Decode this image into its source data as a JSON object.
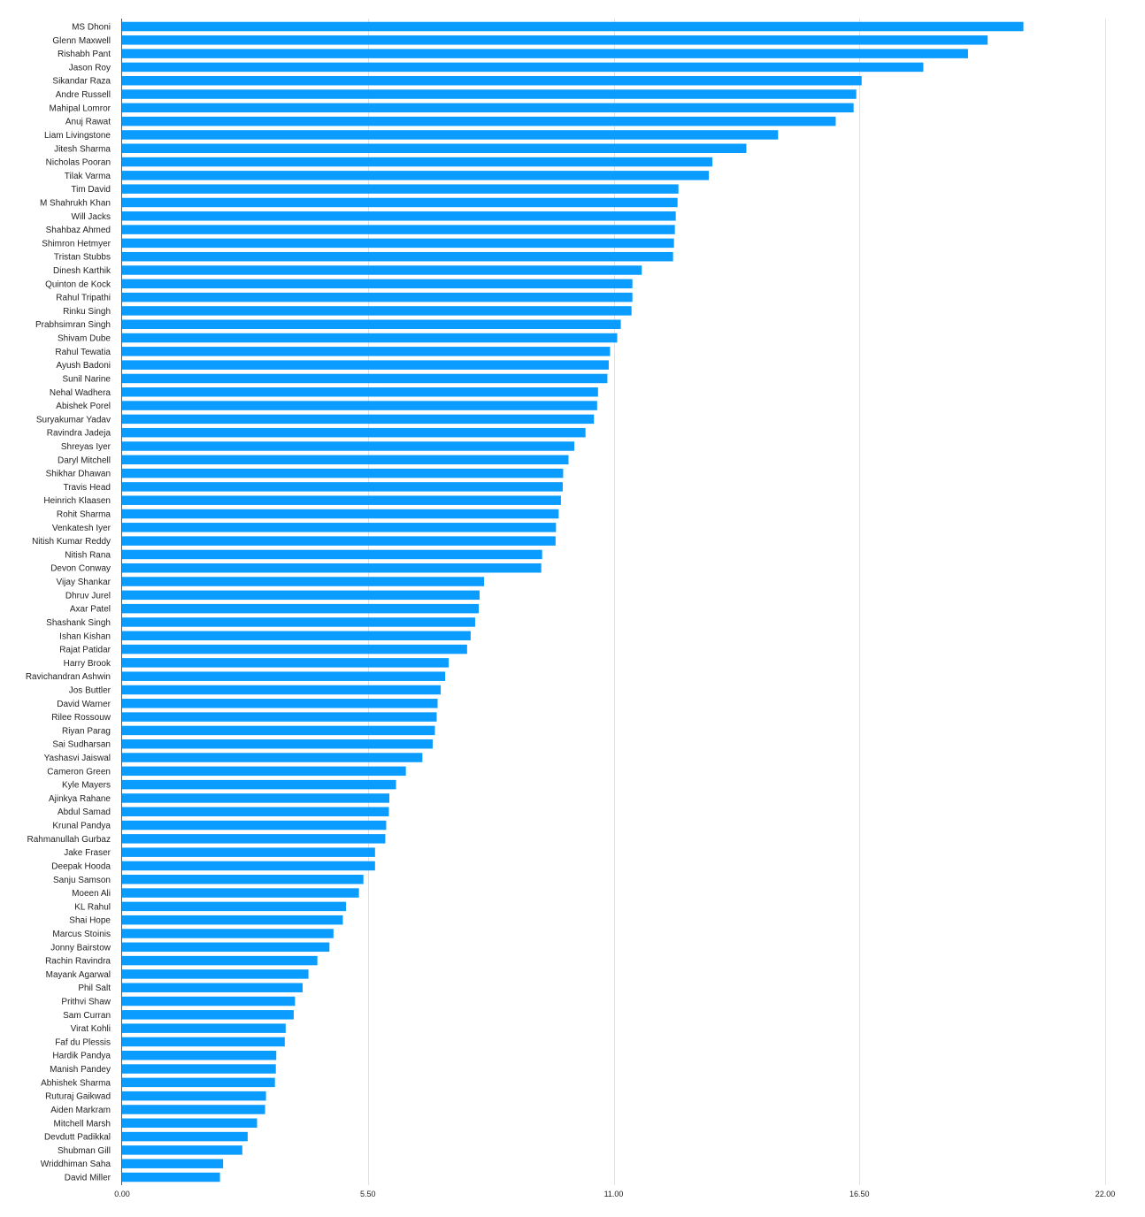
{
  "chart_data": {
    "type": "bar",
    "orientation": "horizontal",
    "title": "",
    "xlabel": "",
    "ylabel": "",
    "xlim": [
      0,
      22
    ],
    "x_ticks": [
      "0.00",
      "5.50",
      "11.00",
      "16.50",
      "22.00"
    ],
    "x_tick_values": [
      0,
      5.5,
      11,
      16.5,
      22
    ],
    "grid": "vertical",
    "legend": "none",
    "bar_color": "#0a9cff",
    "categories": [
      "MS Dhoni",
      "Glenn Maxwell",
      "Rishabh Pant",
      "Jason Roy",
      "Sikandar Raza",
      "Andre Russell",
      "Mahipal Lomror",
      "Anuj Rawat",
      "Liam Livingstone",
      "Jitesh Sharma",
      "Nicholas Pooran",
      "Tilak Varma",
      "Tim David",
      "M Shahrukh Khan",
      "Will Jacks",
      "Shahbaz Ahmed",
      "Shimron Hetmyer",
      "Tristan Stubbs",
      "Dinesh Karthik",
      "Quinton de Kock",
      "Rahul Tripathi",
      "Rinku Singh",
      "Prabhsimran Singh",
      "Shivam Dube",
      "Rahul Tewatia",
      "Ayush Badoni",
      "Sunil Narine",
      "Nehal Wadhera",
      "Abishek Porel",
      "Suryakumar Yadav",
      "Ravindra Jadeja",
      "Shreyas Iyer",
      "Daryl Mitchell",
      "Shikhar Dhawan",
      "Travis Head",
      "Heinrich Klaasen",
      "Rohit Sharma",
      "Venkatesh Iyer",
      "Nitish Kumar Reddy",
      "Nitish Rana",
      "Devon Conway",
      "Vijay Shankar",
      "Dhruv Jurel",
      "Axar Patel",
      "Shashank Singh",
      "Ishan Kishan",
      "Rajat Patidar",
      "Harry Brook",
      "Ravichandran Ashwin",
      "Jos Buttler",
      "David Warner",
      "Rilee Rossouw",
      "Riyan Parag",
      "Sai Sudharsan",
      "Yashasvi Jaiswal",
      "Cameron Green",
      "Kyle Mayers",
      "Ajinkya Rahane",
      "Abdul Samad",
      "Krunal Pandya",
      "Rahmanullah Gurbaz",
      "Jake Fraser",
      "Deepak Hooda",
      "Sanju Samson",
      "Moeen Ali",
      "KL Rahul",
      "Shai Hope",
      "Marcus Stoinis",
      "Jonny Bairstow",
      "Rachin Ravindra",
      "Mayank Agarwal",
      "Phil Salt",
      "Prithvi Shaw",
      "Sam Curran",
      "Virat Kohli",
      "Faf du Plessis",
      "Hardik Pandya",
      "Manish Pandey",
      "Abhishek Sharma",
      "Ruturaj Gaikwad",
      "Aiden Markram",
      "Mitchell Marsh",
      "Devdutt Padikkal",
      "Shubman Gill",
      "Wriddhiman Saha",
      "David Miller"
    ],
    "values": [
      20.17,
      19.37,
      18.93,
      17.93,
      16.55,
      16.43,
      16.37,
      15.97,
      14.68,
      13.97,
      13.21,
      13.13,
      12.45,
      12.43,
      12.39,
      12.37,
      12.35,
      12.33,
      11.63,
      11.42,
      11.42,
      11.4,
      11.16,
      11.08,
      10.92,
      10.89,
      10.86,
      10.65,
      10.63,
      10.56,
      10.37,
      10.12,
      9.99,
      9.87,
      9.86,
      9.82,
      9.77,
      9.71,
      9.7,
      9.4,
      9.38,
      8.1,
      8.0,
      7.98,
      7.9,
      7.8,
      7.72,
      7.31,
      7.23,
      7.13,
      7.06,
      7.04,
      7.0,
      6.95,
      6.72,
      6.35,
      6.13,
      5.98,
      5.97,
      5.91,
      5.89,
      5.66,
      5.66,
      5.4,
      5.3,
      5.01,
      4.94,
      4.73,
      4.64,
      4.37,
      4.17,
      4.04,
      3.87,
      3.84,
      3.66,
      3.64,
      3.45,
      3.44,
      3.42,
      3.22,
      3.2,
      3.02,
      2.81,
      2.69,
      2.26,
      2.19
    ]
  }
}
